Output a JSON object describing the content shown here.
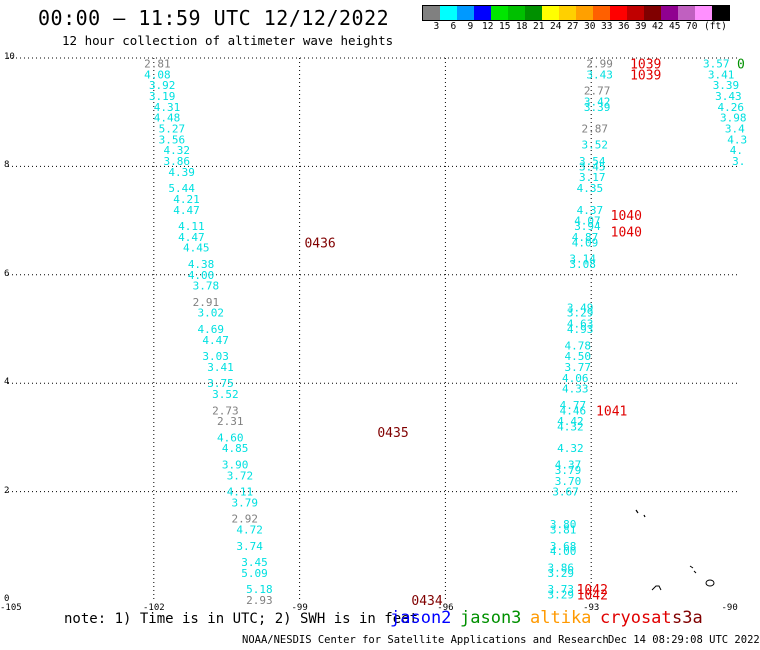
{
  "header": {
    "title": "00:00 – 11:59 UTC 12/12/2022",
    "subtitle": "12 hour collection of altimeter wave heights"
  },
  "colorbar": {
    "colors": [
      "#808080",
      "#00ffff",
      "#0099ff",
      "#0000ff",
      "#00e600",
      "#00c000",
      "#009000",
      "#ffff00",
      "#ffd000",
      "#ffa000",
      "#ff6000",
      "#ff0000",
      "#c00000",
      "#800000",
      "#900090",
      "#c060c0",
      "#ff90ff",
      "#000000"
    ],
    "labels": [
      "3",
      "6",
      "9",
      "12",
      "15",
      "18",
      "21",
      "24",
      "27",
      "30",
      "33",
      "36",
      "39",
      "42",
      "45",
      "70",
      "(ft)"
    ]
  },
  "axes": {
    "x_ticks": [
      "-105",
      "-102",
      "-99",
      "-96",
      "-93",
      "-90"
    ],
    "y_ticks": [
      "0",
      "2",
      "4",
      "6",
      "8",
      "10"
    ],
    "xlim": [
      -105,
      -90
    ],
    "ylim": [
      0,
      10
    ]
  },
  "tracks": [
    {
      "name": "west-track",
      "points": [
        {
          "lon": -102.2,
          "lat": 9.9,
          "v": "2.81",
          "c": "gray"
        },
        {
          "lon": -102.2,
          "lat": 9.7,
          "v": "4.08",
          "c": "cyan"
        },
        {
          "lon": -102.1,
          "lat": 9.5,
          "v": "3.92",
          "c": "cyan"
        },
        {
          "lon": -102.1,
          "lat": 9.3,
          "v": "3.19",
          "c": "cyan"
        },
        {
          "lon": -102.0,
          "lat": 9.1,
          "v": "4.31",
          "c": "cyan"
        },
        {
          "lon": -102.0,
          "lat": 8.9,
          "v": "4.48",
          "c": "cyan"
        },
        {
          "lon": -101.9,
          "lat": 8.7,
          "v": "5.27",
          "c": "cyan"
        },
        {
          "lon": -101.9,
          "lat": 8.5,
          "v": "3.56",
          "c": "cyan"
        },
        {
          "lon": -101.8,
          "lat": 8.3,
          "v": "4.32",
          "c": "cyan"
        },
        {
          "lon": -101.8,
          "lat": 8.1,
          "v": "3.86",
          "c": "cyan"
        },
        {
          "lon": -101.7,
          "lat": 7.9,
          "v": "4.39",
          "c": "cyan"
        },
        {
          "lon": -101.7,
          "lat": 7.6,
          "v": "5.44",
          "c": "cyan"
        },
        {
          "lon": -101.6,
          "lat": 7.4,
          "v": "4.21",
          "c": "cyan"
        },
        {
          "lon": -101.6,
          "lat": 7.2,
          "v": "4.47",
          "c": "cyan"
        },
        {
          "lon": -101.5,
          "lat": 6.9,
          "v": "4.11",
          "c": "cyan"
        },
        {
          "lon": -101.5,
          "lat": 6.7,
          "v": "4.47",
          "c": "cyan"
        },
        {
          "lon": -101.4,
          "lat": 6.5,
          "v": "4.45",
          "c": "cyan"
        },
        {
          "lon": -101.3,
          "lat": 6.2,
          "v": "4.38",
          "c": "cyan"
        },
        {
          "lon": -101.3,
          "lat": 6.0,
          "v": "4.00",
          "c": "cyan"
        },
        {
          "lon": -101.2,
          "lat": 5.8,
          "v": "3.78",
          "c": "cyan"
        },
        {
          "lon": -101.2,
          "lat": 5.5,
          "v": "2.91",
          "c": "gray"
        },
        {
          "lon": -101.1,
          "lat": 5.3,
          "v": "3.02",
          "c": "cyan"
        },
        {
          "lon": -101.1,
          "lat": 5.0,
          "v": "4.69",
          "c": "cyan"
        },
        {
          "lon": -101.0,
          "lat": 4.8,
          "v": "4.47",
          "c": "cyan"
        },
        {
          "lon": -101.0,
          "lat": 4.5,
          "v": "3.03",
          "c": "cyan"
        },
        {
          "lon": -100.9,
          "lat": 4.3,
          "v": "3.41",
          "c": "cyan"
        },
        {
          "lon": -100.9,
          "lat": 4.0,
          "v": "3.75",
          "c": "cyan"
        },
        {
          "lon": -100.8,
          "lat": 3.8,
          "v": "3.52",
          "c": "cyan"
        },
        {
          "lon": -100.8,
          "lat": 3.5,
          "v": "2.73",
          "c": "gray"
        },
        {
          "lon": -100.7,
          "lat": 3.3,
          "v": "2.31",
          "c": "gray"
        },
        {
          "lon": -100.7,
          "lat": 3.0,
          "v": "4.60",
          "c": "cyan"
        },
        {
          "lon": -100.6,
          "lat": 2.8,
          "v": "4.85",
          "c": "cyan"
        },
        {
          "lon": -100.6,
          "lat": 2.5,
          "v": "3.90",
          "c": "cyan"
        },
        {
          "lon": -100.5,
          "lat": 2.3,
          "v": "3.72",
          "c": "cyan"
        },
        {
          "lon": -100.5,
          "lat": 2.0,
          "v": "4.11",
          "c": "cyan"
        },
        {
          "lon": -100.4,
          "lat": 1.8,
          "v": "3.79",
          "c": "cyan"
        },
        {
          "lon": -100.4,
          "lat": 1.5,
          "v": "2.92",
          "c": "gray"
        },
        {
          "lon": -100.3,
          "lat": 1.3,
          "v": "4.72",
          "c": "cyan"
        },
        {
          "lon": -100.3,
          "lat": 1.0,
          "v": "3.74",
          "c": "cyan"
        },
        {
          "lon": -100.2,
          "lat": 0.7,
          "v": "3.45",
          "c": "cyan"
        },
        {
          "lon": -100.2,
          "lat": 0.5,
          "v": "5.09",
          "c": "cyan"
        },
        {
          "lon": -100.1,
          "lat": 0.2,
          "v": "5.18",
          "c": "cyan"
        },
        {
          "lon": -100.1,
          "lat": 0.0,
          "v": "2.93",
          "c": "gray"
        }
      ]
    },
    {
      "name": "east-track",
      "points": [
        {
          "lon": -93.1,
          "lat": 9.9,
          "v": "2.99",
          "c": "gray"
        },
        {
          "lon": -93.1,
          "lat": 9.7,
          "v": "3.43",
          "c": "cyan"
        },
        {
          "lon": -93.15,
          "lat": 9.4,
          "v": "2.77",
          "c": "gray"
        },
        {
          "lon": -93.15,
          "lat": 9.2,
          "v": "3.42",
          "c": "cyan"
        },
        {
          "lon": -93.15,
          "lat": 9.1,
          "v": "3.39",
          "c": "cyan"
        },
        {
          "lon": -93.2,
          "lat": 8.7,
          "v": "2.87",
          "c": "gray"
        },
        {
          "lon": -93.2,
          "lat": 8.4,
          "v": "3.52",
          "c": "cyan"
        },
        {
          "lon": -93.25,
          "lat": 8.1,
          "v": "3.54",
          "c": "cyan"
        },
        {
          "lon": -93.25,
          "lat": 8.0,
          "v": "3.45",
          "c": "cyan"
        },
        {
          "lon": -93.25,
          "lat": 7.8,
          "v": "3.17",
          "c": "cyan"
        },
        {
          "lon": -93.3,
          "lat": 7.6,
          "v": "4.35",
          "c": "cyan"
        },
        {
          "lon": -93.3,
          "lat": 7.2,
          "v": "4.37",
          "c": "cyan"
        },
        {
          "lon": -93.35,
          "lat": 7.0,
          "v": "4.07",
          "c": "cyan"
        },
        {
          "lon": -93.35,
          "lat": 6.9,
          "v": "3.94",
          "c": "cyan"
        },
        {
          "lon": -93.4,
          "lat": 6.7,
          "v": "4.87",
          "c": "cyan"
        },
        {
          "lon": -93.4,
          "lat": 6.6,
          "v": "4.09",
          "c": "cyan"
        },
        {
          "lon": -93.45,
          "lat": 6.3,
          "v": "3.14",
          "c": "cyan"
        },
        {
          "lon": -93.45,
          "lat": 6.2,
          "v": "3.08",
          "c": "cyan"
        },
        {
          "lon": -93.5,
          "lat": 5.4,
          "v": "3.49",
          "c": "cyan"
        },
        {
          "lon": -93.5,
          "lat": 5.3,
          "v": "3.29",
          "c": "cyan"
        },
        {
          "lon": -93.5,
          "lat": 5.1,
          "v": "4.63",
          "c": "cyan"
        },
        {
          "lon": -93.5,
          "lat": 5.0,
          "v": "4.93",
          "c": "cyan"
        },
        {
          "lon": -93.55,
          "lat": 4.7,
          "v": "4.78",
          "c": "cyan"
        },
        {
          "lon": -93.55,
          "lat": 4.5,
          "v": "4.50",
          "c": "cyan"
        },
        {
          "lon": -93.55,
          "lat": 4.3,
          "v": "3.77",
          "c": "cyan"
        },
        {
          "lon": -93.6,
          "lat": 4.1,
          "v": "4.06",
          "c": "cyan"
        },
        {
          "lon": -93.6,
          "lat": 3.9,
          "v": "4.33",
          "c": "cyan"
        },
        {
          "lon": -93.65,
          "lat": 3.6,
          "v": "4.77",
          "c": "cyan"
        },
        {
          "lon": -93.65,
          "lat": 3.5,
          "v": "4.46",
          "c": "cyan"
        },
        {
          "lon": -93.7,
          "lat": 3.3,
          "v": "4.42",
          "c": "cyan"
        },
        {
          "lon": -93.7,
          "lat": 3.2,
          "v": "4.32",
          "c": "cyan"
        },
        {
          "lon": -93.7,
          "lat": 2.8,
          "v": "4.32",
          "c": "cyan"
        },
        {
          "lon": -93.75,
          "lat": 2.5,
          "v": "4.37",
          "c": "cyan"
        },
        {
          "lon": -93.75,
          "lat": 2.4,
          "v": "3.79",
          "c": "cyan"
        },
        {
          "lon": -93.75,
          "lat": 2.2,
          "v": "3.70",
          "c": "cyan"
        },
        {
          "lon": -93.8,
          "lat": 2.0,
          "v": "3.67",
          "c": "cyan"
        },
        {
          "lon": -93.85,
          "lat": 1.4,
          "v": "3.80",
          "c": "cyan"
        },
        {
          "lon": -93.85,
          "lat": 1.3,
          "v": "3.81",
          "c": "cyan"
        },
        {
          "lon": -93.85,
          "lat": 1.0,
          "v": "3.68",
          "c": "cyan"
        },
        {
          "lon": -93.85,
          "lat": 0.9,
          "v": "4.00",
          "c": "cyan"
        },
        {
          "lon": -93.9,
          "lat": 0.6,
          "v": "3.86",
          "c": "cyan"
        },
        {
          "lon": -93.9,
          "lat": 0.5,
          "v": "3.29",
          "c": "cyan"
        },
        {
          "lon": -93.9,
          "lat": 0.2,
          "v": "3.73",
          "c": "cyan"
        },
        {
          "lon": -93.9,
          "lat": 0.1,
          "v": "3.29",
          "c": "cyan"
        }
      ]
    },
    {
      "name": "far-east-track",
      "points": [
        {
          "lon": -90.7,
          "lat": 9.9,
          "v": "3.57",
          "c": "cyan"
        },
        {
          "lon": -90.6,
          "lat": 9.7,
          "v": "3.41",
          "c": "cyan"
        },
        {
          "lon": -90.5,
          "lat": 9.5,
          "v": "3.39",
          "c": "cyan"
        },
        {
          "lon": -90.45,
          "lat": 9.3,
          "v": "3.43",
          "c": "cyan"
        },
        {
          "lon": -90.4,
          "lat": 9.1,
          "v": "4.26",
          "c": "cyan"
        },
        {
          "lon": -90.35,
          "lat": 8.9,
          "v": "3.98",
          "c": "cyan"
        },
        {
          "lon": -90.25,
          "lat": 8.7,
          "v": "3.4",
          "c": "cyan"
        },
        {
          "lon": -90.2,
          "lat": 8.5,
          "v": "4.3",
          "c": "cyan"
        },
        {
          "lon": -90.15,
          "lat": 8.3,
          "v": "4.",
          "c": "cyan"
        },
        {
          "lon": -90.1,
          "lat": 8.1,
          "v": "3.",
          "c": "cyan"
        }
      ]
    }
  ],
  "time_labels": [
    {
      "lon": -98.9,
      "lat": 6.6,
      "v": "0436",
      "c": "maroon"
    },
    {
      "lon": -97.4,
      "lat": 3.1,
      "v": "0435",
      "c": "maroon"
    },
    {
      "lon": -96.7,
      "lat": 0.0,
      "v": "0434",
      "c": "maroon"
    },
    {
      "lon": -92.2,
      "lat": 9.9,
      "v": "1039",
      "c": "red"
    },
    {
      "lon": -92.2,
      "lat": 9.7,
      "v": "1039",
      "c": "red"
    },
    {
      "lon": -92.6,
      "lat": 7.1,
      "v": "1040",
      "c": "red"
    },
    {
      "lon": -92.6,
      "lat": 6.8,
      "v": "1040",
      "c": "red"
    },
    {
      "lon": -92.9,
      "lat": 3.5,
      "v": "1041",
      "c": "red"
    },
    {
      "lon": -93.3,
      "lat": 0.2,
      "v": "1042",
      "c": "red"
    },
    {
      "lon": -93.3,
      "lat": 0.1,
      "v": "1042",
      "c": "red"
    },
    {
      "lon": -90.0,
      "lat": 9.9,
      "v": "0",
      "c": "green"
    }
  ],
  "colors": {
    "cyan": "#00e0e0",
    "gray": "#808080",
    "maroon": "#800000",
    "red": "#e00000",
    "green": "#009000"
  },
  "footer": {
    "note": "note: 1) Time is in UTC; 2) SWH is in feet",
    "satellites": [
      {
        "label": "jason2",
        "color": "#0000ff"
      },
      {
        "label": "jason3",
        "color": "#009000"
      },
      {
        "label": "altika",
        "color": "#ff9900"
      },
      {
        "label": "cryosat",
        "color": "#e00000"
      },
      {
        "label": "s3a",
        "color": "#800000"
      }
    ],
    "credit": "NOAA/NESDIS Center for Satellite Applications and Research",
    "date": "Dec 14 08:29:08 UTC 2022"
  }
}
